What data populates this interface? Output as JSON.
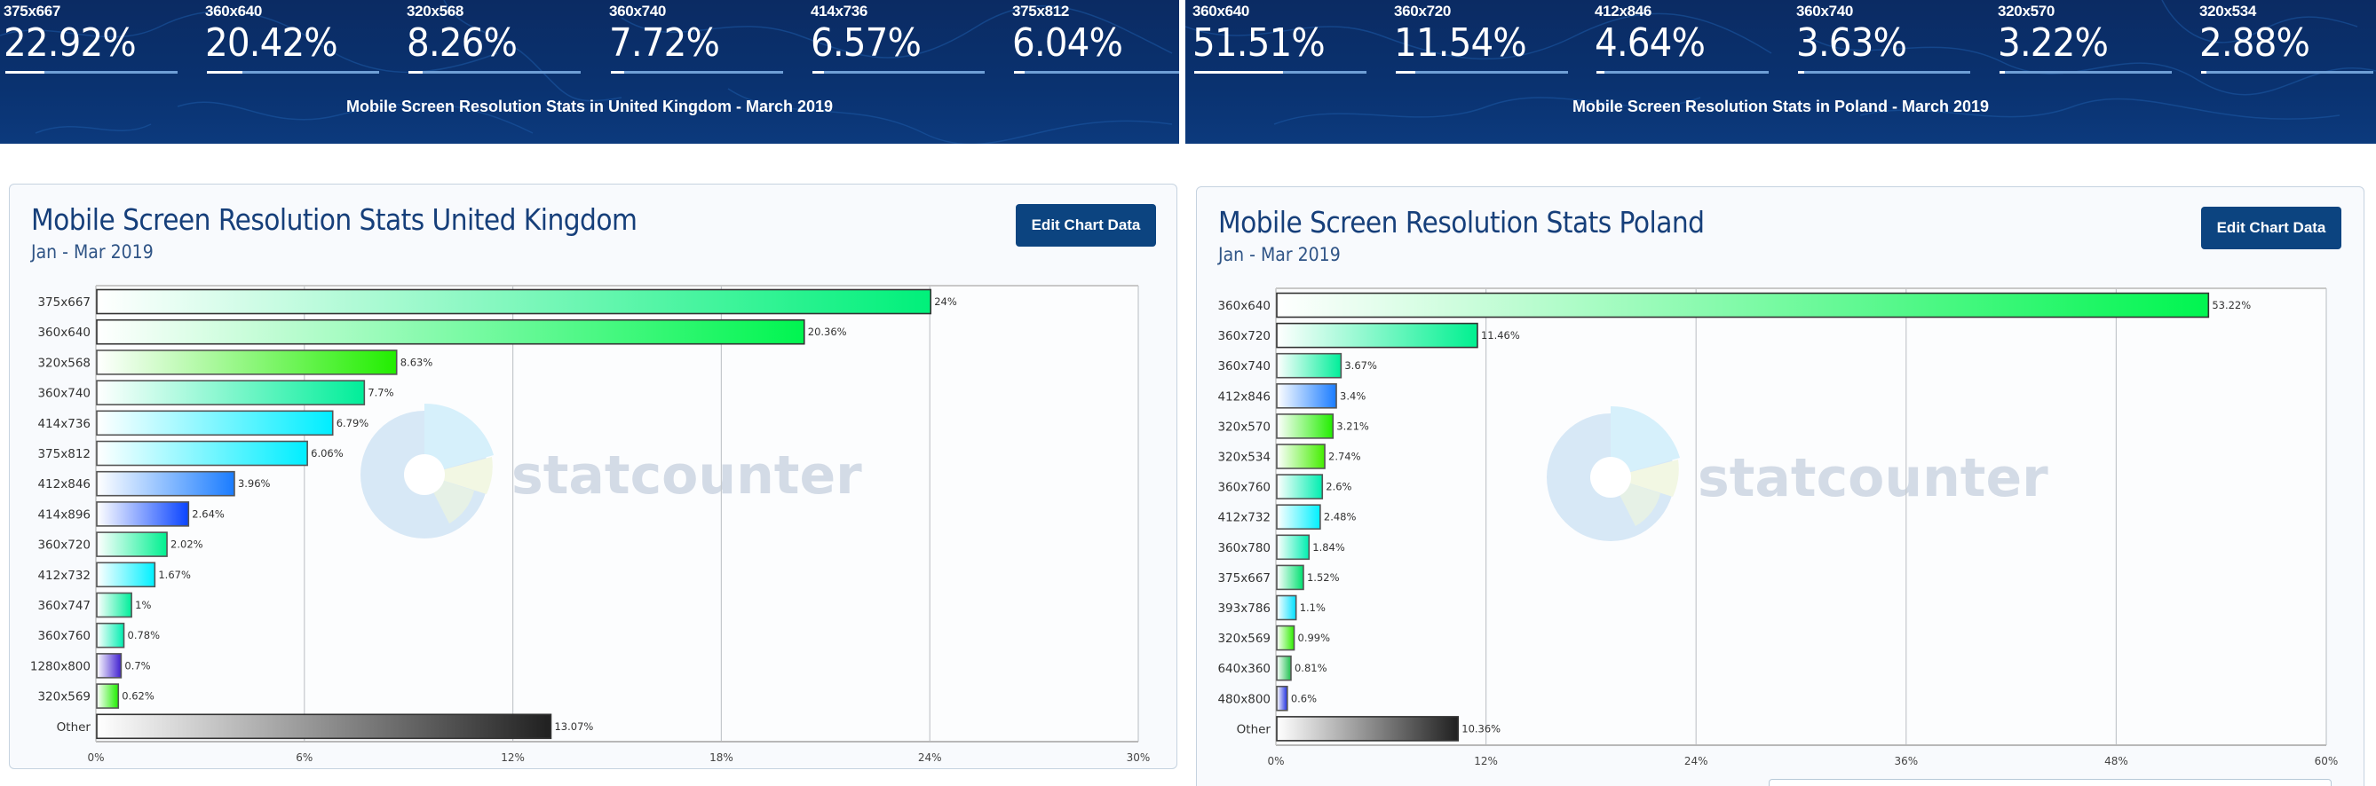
{
  "colors": {
    "banner_bg": "#0a3270",
    "accent": "#0c4480",
    "title": "#163f7a",
    "stat_track": "#6f9fd6"
  },
  "panels": [
    {
      "id": "uk",
      "banner": {
        "stats": [
          {
            "label": "375x667",
            "value": "22.92%",
            "fraction": 0.2292
          },
          {
            "label": "360x640",
            "value": "20.42%",
            "fraction": 0.2042
          },
          {
            "label": "320x568",
            "value": "8.26%",
            "fraction": 0.0826
          },
          {
            "label": "360x740",
            "value": "7.72%",
            "fraction": 0.0772
          },
          {
            "label": "414x736",
            "value": "6.57%",
            "fraction": 0.0657
          },
          {
            "label": "375x812",
            "value": "6.04%",
            "fraction": 0.0604
          }
        ],
        "caption": "Mobile Screen Resolution Stats in United Kingdom - March 2019"
      },
      "card": {
        "title": "Mobile Screen Resolution Stats United Kingdom",
        "subtitle": "Jan - Mar 2019",
        "edit_button": "Edit Chart Data",
        "watermark": "statcounter"
      }
    },
    {
      "id": "pl",
      "banner": {
        "stats": [
          {
            "label": "360x640",
            "value": "51.51%",
            "fraction": 0.5151
          },
          {
            "label": "360x720",
            "value": "11.54%",
            "fraction": 0.1154
          },
          {
            "label": "412x846",
            "value": "4.64%",
            "fraction": 0.0464
          },
          {
            "label": "360x740",
            "value": "3.63%",
            "fraction": 0.0363
          },
          {
            "label": "320x570",
            "value": "3.22%",
            "fraction": 0.0322
          },
          {
            "label": "320x534",
            "value": "2.88%",
            "fraction": 0.0288
          }
        ],
        "caption": "Mobile Screen Resolution Stats in Poland - March 2019"
      },
      "card": {
        "title": "Mobile Screen Resolution Stats Poland",
        "subtitle": "Jan - Mar 2019",
        "edit_button": "Edit Chart Data",
        "watermark": "statcounter"
      }
    }
  ],
  "chart_data": [
    {
      "type": "bar",
      "orientation": "horizontal",
      "title": "Mobile Screen Resolution Stats United Kingdom",
      "subtitle": "Jan - Mar 2019",
      "xlabel": "",
      "ylabel": "",
      "xlim": [
        0,
        30
      ],
      "xticks": [
        "0%",
        "6%",
        "12%",
        "18%",
        "24%",
        "30%"
      ],
      "xtick_values": [
        0,
        6,
        12,
        18,
        24,
        30
      ],
      "grid": true,
      "categories": [
        "375x667",
        "360x640",
        "320x568",
        "360x740",
        "414x736",
        "375x812",
        "412x846",
        "414x896",
        "360x720",
        "412x732",
        "360x747",
        "360x760",
        "1280x800",
        "320x569",
        "Other"
      ],
      "values": [
        24,
        20.36,
        8.63,
        7.7,
        6.79,
        6.06,
        3.96,
        2.64,
        2.02,
        1.67,
        1,
        0.78,
        0.7,
        0.62,
        13.07
      ],
      "labels": [
        "24%",
        "20.36%",
        "8.63%",
        "7.7%",
        "6.79%",
        "6.06%",
        "3.96%",
        "2.64%",
        "2.02%",
        "1.67%",
        "1%",
        "0.78%",
        "0.7%",
        "0.62%",
        "13.07%"
      ],
      "bar_colors": [
        "#00f07a",
        "#00f550",
        "#22ee00",
        "#00ee99",
        "#00eeff",
        "#00eeff",
        "#1a7cff",
        "#0a44ff",
        "#00f090",
        "#00f0ff",
        "#00ee9a",
        "#00eeb0",
        "#4020d0",
        "#20ee00",
        "#202020"
      ]
    },
    {
      "type": "bar",
      "orientation": "horizontal",
      "title": "Mobile Screen Resolution Stats Poland",
      "subtitle": "Jan - Mar 2019",
      "xlabel": "",
      "ylabel": "",
      "xlim": [
        0,
        60
      ],
      "xticks": [
        "0%",
        "12%",
        "24%",
        "36%",
        "48%",
        "60%"
      ],
      "xtick_values": [
        0,
        12,
        24,
        36,
        48,
        60
      ],
      "grid": true,
      "categories": [
        "360x640",
        "360x720",
        "360x740",
        "412x846",
        "320x570",
        "320x534",
        "360x760",
        "412x732",
        "360x780",
        "375x667",
        "393x786",
        "320x569",
        "640x360",
        "480x800",
        "Other"
      ],
      "values": [
        53.22,
        11.46,
        3.67,
        3.4,
        3.21,
        2.74,
        2.6,
        2.48,
        1.84,
        1.52,
        1.1,
        0.99,
        0.81,
        0.6,
        10.36
      ],
      "labels": [
        "53.22%",
        "11.46%",
        "3.67%",
        "3.4%",
        "3.21%",
        "2.74%",
        "2.6%",
        "2.48%",
        "1.84%",
        "1.52%",
        "1.1%",
        "0.99%",
        "0.81%",
        "0.6%",
        "10.36%"
      ],
      "bar_colors": [
        "#00f550",
        "#00f090",
        "#00ee99",
        "#1a7cff",
        "#22ee00",
        "#44ee00",
        "#00eeb0",
        "#00f0ff",
        "#00eeb0",
        "#00e070",
        "#00e0ff",
        "#30ee00",
        "#20c050",
        "#2030e0",
        "#202020"
      ]
    }
  ]
}
